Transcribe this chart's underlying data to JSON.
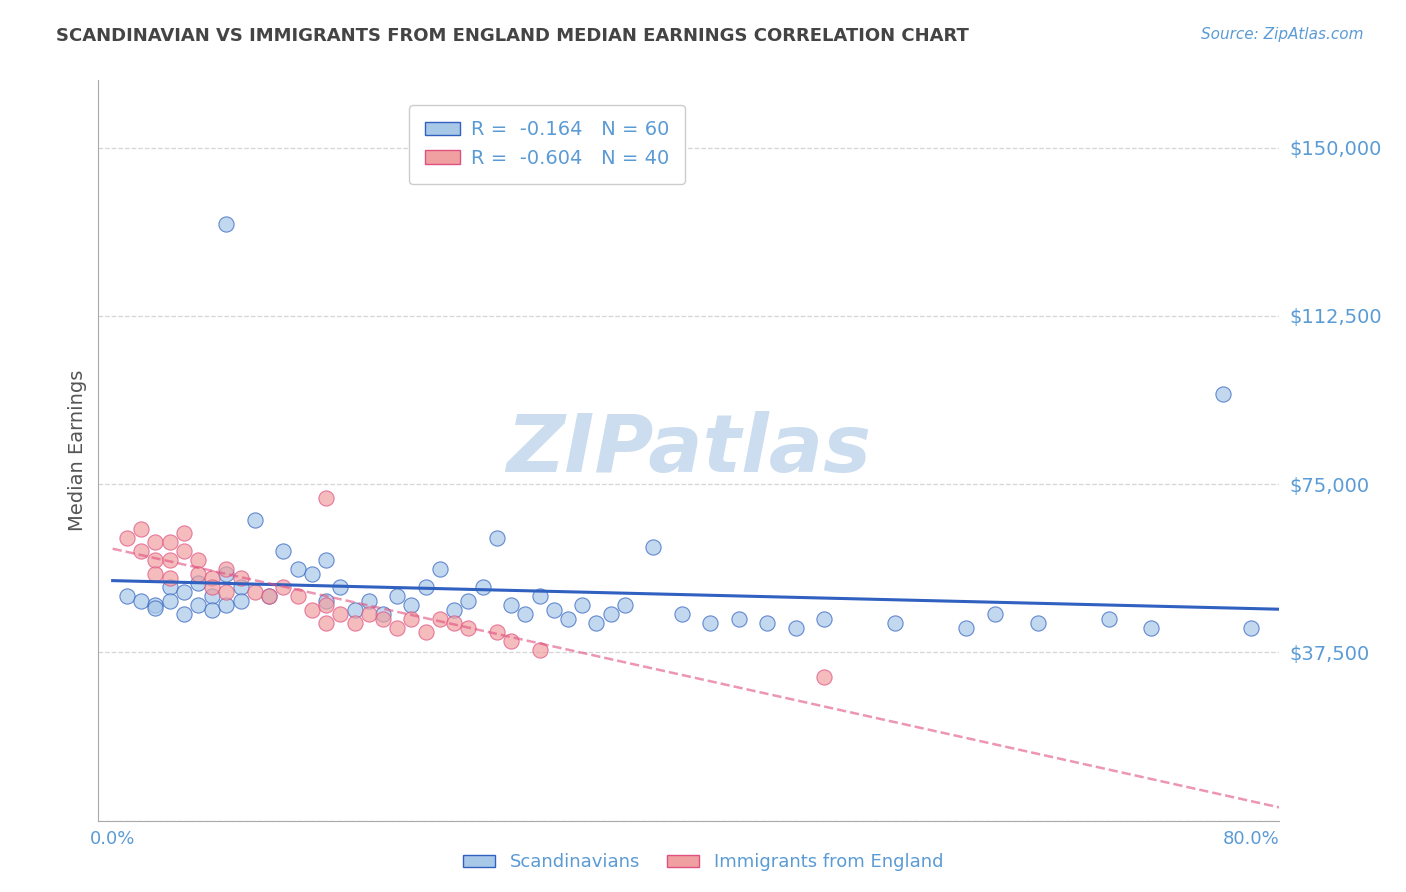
{
  "title": "SCANDINAVIAN VS IMMIGRANTS FROM ENGLAND MEDIAN EARNINGS CORRELATION CHART",
  "source": "Source: ZipAtlas.com",
  "ylabel": "Median Earnings",
  "xlim": [
    -0.01,
    0.82
  ],
  "ylim": [
    0,
    165000
  ],
  "yticks": [
    0,
    37500,
    75000,
    112500,
    150000
  ],
  "ytick_labels": [
    "",
    "$37,500",
    "$75,000",
    "$112,500",
    "$150,000"
  ],
  "xticks": [
    0.0,
    0.1,
    0.2,
    0.3,
    0.4,
    0.5,
    0.6,
    0.7,
    0.8
  ],
  "xtick_labels": [
    "0.0%",
    "",
    "",
    "",
    "",
    "",
    "",
    "",
    "80.0%"
  ],
  "r_scandinavian": -0.164,
  "n_scandinavian": 60,
  "r_england": -0.604,
  "n_england": 40,
  "blue_color": "#a8c8e8",
  "pink_color": "#f0a0a0",
  "blue_line_color": "#3060c0",
  "pink_line_color": "#e05080",
  "title_color": "#444444",
  "axis_label_color": "#555555",
  "axis_tick_color": "#5b9bd5",
  "watermark_color": "#ccddf0",
  "background_color": "#ffffff",
  "grid_color": "#cccccc",
  "scandinavian_points": [
    [
      0.01,
      50000
    ],
    [
      0.02,
      49000
    ],
    [
      0.03,
      48000
    ],
    [
      0.03,
      47500
    ],
    [
      0.04,
      52000
    ],
    [
      0.04,
      49000
    ],
    [
      0.05,
      51000
    ],
    [
      0.05,
      46000
    ],
    [
      0.06,
      53000
    ],
    [
      0.06,
      48000
    ],
    [
      0.07,
      50000
    ],
    [
      0.07,
      47000
    ],
    [
      0.08,
      55000
    ],
    [
      0.08,
      48000
    ],
    [
      0.09,
      52000
    ],
    [
      0.09,
      49000
    ],
    [
      0.1,
      67000
    ],
    [
      0.11,
      50000
    ],
    [
      0.12,
      60000
    ],
    [
      0.13,
      56000
    ],
    [
      0.14,
      55000
    ],
    [
      0.15,
      58000
    ],
    [
      0.15,
      49000
    ],
    [
      0.16,
      52000
    ],
    [
      0.17,
      47000
    ],
    [
      0.18,
      49000
    ],
    [
      0.19,
      46000
    ],
    [
      0.2,
      50000
    ],
    [
      0.21,
      48000
    ],
    [
      0.22,
      52000
    ],
    [
      0.23,
      56000
    ],
    [
      0.24,
      47000
    ],
    [
      0.25,
      49000
    ],
    [
      0.26,
      52000
    ],
    [
      0.27,
      63000
    ],
    [
      0.28,
      48000
    ],
    [
      0.29,
      46000
    ],
    [
      0.3,
      50000
    ],
    [
      0.31,
      47000
    ],
    [
      0.32,
      45000
    ],
    [
      0.33,
      48000
    ],
    [
      0.34,
      44000
    ],
    [
      0.35,
      46000
    ],
    [
      0.36,
      48000
    ],
    [
      0.38,
      61000
    ],
    [
      0.4,
      46000
    ],
    [
      0.42,
      44000
    ],
    [
      0.44,
      45000
    ],
    [
      0.46,
      44000
    ],
    [
      0.48,
      43000
    ],
    [
      0.08,
      133000
    ],
    [
      0.5,
      45000
    ],
    [
      0.55,
      44000
    ],
    [
      0.6,
      43000
    ],
    [
      0.62,
      46000
    ],
    [
      0.65,
      44000
    ],
    [
      0.7,
      45000
    ],
    [
      0.73,
      43000
    ],
    [
      0.78,
      95000
    ],
    [
      0.8,
      43000
    ]
  ],
  "england_points": [
    [
      0.01,
      63000
    ],
    [
      0.02,
      65000
    ],
    [
      0.02,
      60000
    ],
    [
      0.03,
      62000
    ],
    [
      0.03,
      58000
    ],
    [
      0.03,
      55000
    ],
    [
      0.04,
      62000
    ],
    [
      0.04,
      58000
    ],
    [
      0.04,
      54000
    ],
    [
      0.05,
      60000
    ],
    [
      0.05,
      64000
    ],
    [
      0.06,
      58000
    ],
    [
      0.06,
      55000
    ],
    [
      0.07,
      54000
    ],
    [
      0.07,
      52000
    ],
    [
      0.08,
      56000
    ],
    [
      0.08,
      51000
    ],
    [
      0.09,
      54000
    ],
    [
      0.1,
      51000
    ],
    [
      0.11,
      50000
    ],
    [
      0.12,
      52000
    ],
    [
      0.13,
      50000
    ],
    [
      0.14,
      47000
    ],
    [
      0.15,
      48000
    ],
    [
      0.15,
      44000
    ],
    [
      0.16,
      46000
    ],
    [
      0.17,
      44000
    ],
    [
      0.18,
      46000
    ],
    [
      0.19,
      45000
    ],
    [
      0.2,
      43000
    ],
    [
      0.21,
      45000
    ],
    [
      0.22,
      42000
    ],
    [
      0.23,
      45000
    ],
    [
      0.24,
      44000
    ],
    [
      0.25,
      43000
    ],
    [
      0.27,
      42000
    ],
    [
      0.28,
      40000
    ],
    [
      0.3,
      38000
    ],
    [
      0.5,
      32000
    ],
    [
      0.15,
      72000
    ]
  ]
}
